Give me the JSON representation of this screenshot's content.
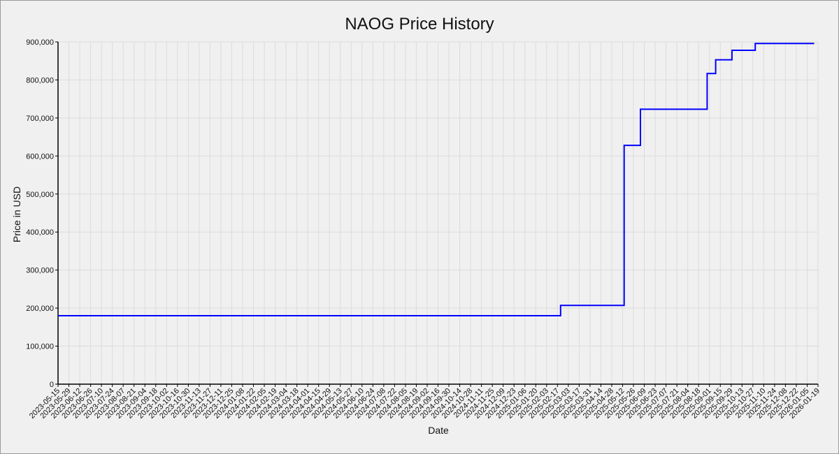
{
  "chart_data": {
    "type": "line",
    "title": "NAOG Price History",
    "xlabel": "Date",
    "ylabel": "Price in USD",
    "ylim": [
      0,
      900000
    ],
    "xlim": [
      "2023-05-15",
      "2026-01-19"
    ],
    "grid": true,
    "legend": "none",
    "colors": {
      "line": "#0000ff",
      "grid": "#dcdcdc",
      "background": "#f0f0f0"
    },
    "y_ticks": [
      0,
      100000,
      200000,
      300000,
      400000,
      500000,
      600000,
      700000,
      800000,
      900000
    ],
    "y_tick_labels": [
      "0",
      "100,000",
      "200,000",
      "300,000",
      "400,000",
      "500,000",
      "600,000",
      "700,000",
      "800,000",
      "900,000"
    ],
    "x_tick_labels": [
      "2023-05-15",
      "2023-05-29",
      "2023-06-12",
      "2023-06-26",
      "2023-07-10",
      "2023-07-24",
      "2023-08-07",
      "2023-08-21",
      "2023-09-04",
      "2023-09-18",
      "2023-10-02",
      "2023-10-16",
      "2023-10-30",
      "2023-11-13",
      "2023-11-27",
      "2023-12-11",
      "2023-12-25",
      "2024-01-08",
      "2024-01-22",
      "2024-02-05",
      "2024-02-19",
      "2024-03-04",
      "2024-03-18",
      "2024-04-01",
      "2024-04-15",
      "2024-04-29",
      "2024-05-13",
      "2024-05-27",
      "2024-06-10",
      "2024-06-24",
      "2024-07-08",
      "2024-07-22",
      "2024-08-05",
      "2024-08-19",
      "2024-09-02",
      "2024-09-16",
      "2024-09-30",
      "2024-10-14",
      "2024-10-28",
      "2024-11-11",
      "2024-11-25",
      "2024-12-09",
      "2024-12-23",
      "2025-01-06",
      "2025-01-20",
      "2025-02-03",
      "2025-02-17",
      "2025-03-03",
      "2025-03-17",
      "2025-03-31",
      "2025-04-14",
      "2025-04-28",
      "2025-05-12",
      "2025-05-26",
      "2025-06-09",
      "2025-06-23",
      "2025-07-07",
      "2025-07-21",
      "2025-08-04",
      "2025-08-18",
      "2025-09-01",
      "2025-09-15",
      "2025-09-29",
      "2025-10-13",
      "2025-10-27",
      "2025-11-10",
      "2025-11-24",
      "2025-12-08",
      "2025-12-22",
      "2026-01-05",
      "2026-01-19"
    ],
    "series": [
      {
        "step": "post",
        "points": [
          {
            "x": "2023-05-15",
            "y": 180000
          },
          {
            "x": "2025-02-21",
            "y": 207000
          },
          {
            "x": "2025-05-14",
            "y": 628000
          },
          {
            "x": "2025-06-04",
            "y": 723000
          },
          {
            "x": "2025-08-29",
            "y": 817000
          },
          {
            "x": "2025-09-09",
            "y": 853000
          },
          {
            "x": "2025-09-30",
            "y": 878000
          },
          {
            "x": "2025-10-30",
            "y": 896000
          },
          {
            "x": "2026-01-14",
            "y": 896000
          }
        ]
      }
    ]
  }
}
